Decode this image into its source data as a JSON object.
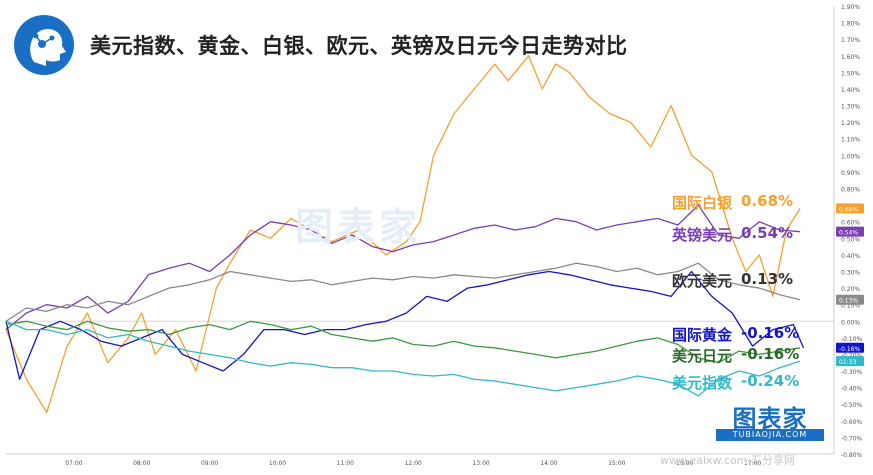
{
  "title": "美元指数、黄金、白银、欧元、英镑及日元今日走势对比",
  "watermark": {
    "brand": "图表家",
    "sub": "TUBIAOJIA.COM"
  },
  "footer": {
    "site": "www.eaixw.com  汇分享网"
  },
  "chart_data": {
    "type": "line",
    "x_ticks": [
      "07:00",
      "08:00",
      "09:00",
      "10:00",
      "11:00",
      "12:00",
      "13:00",
      "14:00",
      "15:00",
      "16:00",
      "17:00"
    ],
    "y_ticks": [
      "1.90%",
      "1.80%",
      "1.70%",
      "1.60%",
      "1.50%",
      "1.40%",
      "1.30%",
      "1.20%",
      "1.10%",
      "1.00%",
      "0.90%",
      "0.80%",
      "0.70%",
      "0.60%",
      "0.50%",
      "0.40%",
      "0.30%",
      "0.20%",
      "0.10%",
      "0.00%",
      "-0.10%",
      "-0.20%",
      "-0.30%",
      "-0.40%",
      "-0.50%",
      "-0.60%",
      "-0.70%",
      "-0.80%"
    ],
    "y_scale": {
      "min": -0.8,
      "max": 1.9,
      "unit": "%"
    },
    "grid": false,
    "axis_badges": [
      {
        "label": "0.68%",
        "value": 0.68,
        "color": "#f5a030"
      },
      {
        "label": "0.54%",
        "value": 0.54,
        "color": "#7a3fb0"
      },
      {
        "label": "0.13%",
        "value": 0.13,
        "color": "#8a8a8a"
      },
      {
        "label": "-0.16%",
        "value": -0.16,
        "color": "#1414c8"
      },
      {
        "label": "01:33",
        "value": -0.24,
        "color": "#32b8c8"
      }
    ],
    "series": [
      {
        "name": "国际白银",
        "final": "0.68%",
        "color": "#f5a030",
        "x": [
          6.0,
          6.3,
          6.6,
          6.9,
          7.2,
          7.5,
          7.8,
          8.0,
          8.2,
          8.5,
          8.8,
          9.1,
          9.3,
          9.6,
          9.9,
          10.2,
          10.5,
          10.8,
          11.2,
          11.6,
          11.9,
          12.1,
          12.3,
          12.6,
          12.9,
          13.2,
          13.4,
          13.7,
          13.9,
          14.1,
          14.3,
          14.6,
          14.9,
          15.2,
          15.5,
          15.8,
          16.1,
          16.4,
          16.7,
          16.9,
          17.1,
          17.3,
          17.5,
          17.7
        ],
        "y": [
          -0.05,
          -0.35,
          -0.55,
          -0.15,
          0.05,
          -0.25,
          -0.1,
          0.05,
          -0.2,
          -0.05,
          -0.3,
          0.2,
          0.35,
          0.55,
          0.5,
          0.62,
          0.55,
          0.48,
          0.55,
          0.4,
          0.48,
          0.6,
          1.0,
          1.25,
          1.4,
          1.55,
          1.45,
          1.6,
          1.4,
          1.55,
          1.5,
          1.35,
          1.25,
          1.2,
          1.05,
          1.3,
          1.0,
          0.9,
          0.5,
          0.3,
          0.4,
          0.15,
          0.55,
          0.68
        ]
      },
      {
        "name": "英镑美元",
        "final": "0.54%",
        "color": "#7a3fb0",
        "x": [
          6.0,
          6.3,
          6.6,
          6.9,
          7.2,
          7.5,
          7.8,
          8.1,
          8.4,
          8.7,
          9.0,
          9.3,
          9.6,
          9.9,
          10.2,
          10.5,
          10.8,
          11.1,
          11.4,
          11.7,
          12.0,
          12.3,
          12.6,
          12.9,
          13.2,
          13.5,
          13.8,
          14.1,
          14.4,
          14.7,
          15.0,
          15.3,
          15.6,
          15.9,
          16.2,
          16.5,
          16.8,
          17.1,
          17.4,
          17.7
        ],
        "y": [
          -0.05,
          0.05,
          0.1,
          0.08,
          0.15,
          0.05,
          0.12,
          0.28,
          0.32,
          0.35,
          0.3,
          0.4,
          0.52,
          0.6,
          0.58,
          0.55,
          0.47,
          0.52,
          0.45,
          0.42,
          0.46,
          0.48,
          0.52,
          0.56,
          0.58,
          0.55,
          0.57,
          0.62,
          0.6,
          0.55,
          0.58,
          0.6,
          0.62,
          0.58,
          0.7,
          0.52,
          0.5,
          0.6,
          0.55,
          0.54
        ]
      },
      {
        "name": "欧元美元",
        "final": "0.13%",
        "color": "#8a8a8a",
        "x": [
          6.0,
          6.3,
          6.6,
          6.9,
          7.2,
          7.5,
          7.8,
          8.1,
          8.4,
          8.7,
          9.0,
          9.3,
          9.6,
          9.9,
          10.2,
          10.5,
          10.8,
          11.1,
          11.4,
          11.7,
          12.0,
          12.3,
          12.6,
          12.9,
          13.2,
          13.5,
          13.8,
          14.1,
          14.4,
          14.7,
          15.0,
          15.3,
          15.6,
          15.9,
          16.2,
          16.5,
          16.8,
          17.1,
          17.4,
          17.7
        ],
        "y": [
          0.0,
          0.08,
          0.06,
          0.1,
          0.08,
          0.12,
          0.1,
          0.15,
          0.2,
          0.22,
          0.25,
          0.3,
          0.28,
          0.26,
          0.24,
          0.25,
          0.22,
          0.24,
          0.26,
          0.25,
          0.27,
          0.26,
          0.28,
          0.27,
          0.26,
          0.28,
          0.3,
          0.32,
          0.35,
          0.33,
          0.3,
          0.32,
          0.28,
          0.3,
          0.35,
          0.25,
          0.22,
          0.2,
          0.16,
          0.13
        ]
      },
      {
        "name": "国际黄金",
        "final": "-0.16%",
        "color": "#1414c8",
        "x": [
          6.0,
          6.2,
          6.5,
          6.8,
          7.1,
          7.4,
          7.7,
          8.0,
          8.3,
          8.6,
          8.9,
          9.2,
          9.5,
          9.8,
          10.1,
          10.4,
          10.7,
          11.0,
          11.3,
          11.6,
          11.9,
          12.2,
          12.5,
          12.8,
          13.1,
          13.4,
          13.7,
          14.0,
          14.3,
          14.6,
          14.9,
          15.2,
          15.5,
          15.8,
          16.1,
          16.4,
          16.7,
          17.0,
          17.3,
          17.6,
          17.75
        ],
        "y": [
          0.0,
          -0.35,
          -0.05,
          0.0,
          -0.05,
          -0.12,
          -0.15,
          -0.1,
          -0.05,
          -0.2,
          -0.25,
          -0.3,
          -0.2,
          -0.05,
          -0.05,
          -0.08,
          -0.05,
          -0.05,
          -0.02,
          0.0,
          0.05,
          0.15,
          0.12,
          0.2,
          0.22,
          0.25,
          0.28,
          0.3,
          0.28,
          0.25,
          0.22,
          0.2,
          0.18,
          0.15,
          0.3,
          0.15,
          0.05,
          -0.15,
          -0.05,
          -0.02,
          -0.16
        ]
      },
      {
        "name": "美元日元",
        "final": "-0.16%",
        "color": "#3c9a3c",
        "x": [
          6.0,
          6.3,
          6.6,
          6.9,
          7.2,
          7.5,
          7.8,
          8.1,
          8.4,
          8.7,
          9.0,
          9.3,
          9.6,
          9.9,
          10.2,
          10.5,
          10.8,
          11.1,
          11.4,
          11.7,
          12.0,
          12.3,
          12.6,
          12.9,
          13.2,
          13.5,
          13.8,
          14.1,
          14.4,
          14.7,
          15.0,
          15.3,
          15.6,
          15.9,
          16.2,
          16.5,
          16.8,
          17.1,
          17.4,
          17.7
        ],
        "y": [
          -0.02,
          0.0,
          -0.03,
          -0.05,
          0.0,
          -0.04,
          -0.06,
          -0.05,
          -0.08,
          -0.04,
          -0.02,
          -0.05,
          0.0,
          -0.02,
          -0.05,
          -0.03,
          -0.08,
          -0.1,
          -0.12,
          -0.1,
          -0.14,
          -0.15,
          -0.12,
          -0.15,
          -0.16,
          -0.18,
          -0.2,
          -0.22,
          -0.2,
          -0.18,
          -0.15,
          -0.12,
          -0.1,
          -0.14,
          -0.22,
          -0.25,
          -0.18,
          -0.2,
          -0.18,
          -0.16
        ]
      },
      {
        "name": "美元指数",
        "final": "-0.24%",
        "color": "#32b8c8",
        "x": [
          6.0,
          6.3,
          6.6,
          6.9,
          7.2,
          7.5,
          7.8,
          8.1,
          8.4,
          8.7,
          9.0,
          9.3,
          9.6,
          9.9,
          10.2,
          10.5,
          10.8,
          11.1,
          11.4,
          11.7,
          12.0,
          12.3,
          12.6,
          12.9,
          13.2,
          13.5,
          13.8,
          14.1,
          14.4,
          14.7,
          15.0,
          15.3,
          15.6,
          15.9,
          16.2,
          16.5,
          16.8,
          17.1,
          17.4,
          17.7
        ],
        "y": [
          0.0,
          -0.05,
          -0.05,
          -0.08,
          -0.05,
          -0.1,
          -0.08,
          -0.12,
          -0.15,
          -0.18,
          -0.2,
          -0.22,
          -0.25,
          -0.27,
          -0.25,
          -0.26,
          -0.28,
          -0.28,
          -0.3,
          -0.3,
          -0.32,
          -0.33,
          -0.32,
          -0.35,
          -0.36,
          -0.38,
          -0.4,
          -0.42,
          -0.4,
          -0.38,
          -0.36,
          -0.33,
          -0.35,
          -0.38,
          -0.45,
          -0.35,
          -0.3,
          -0.33,
          -0.28,
          -0.24
        ]
      }
    ]
  }
}
